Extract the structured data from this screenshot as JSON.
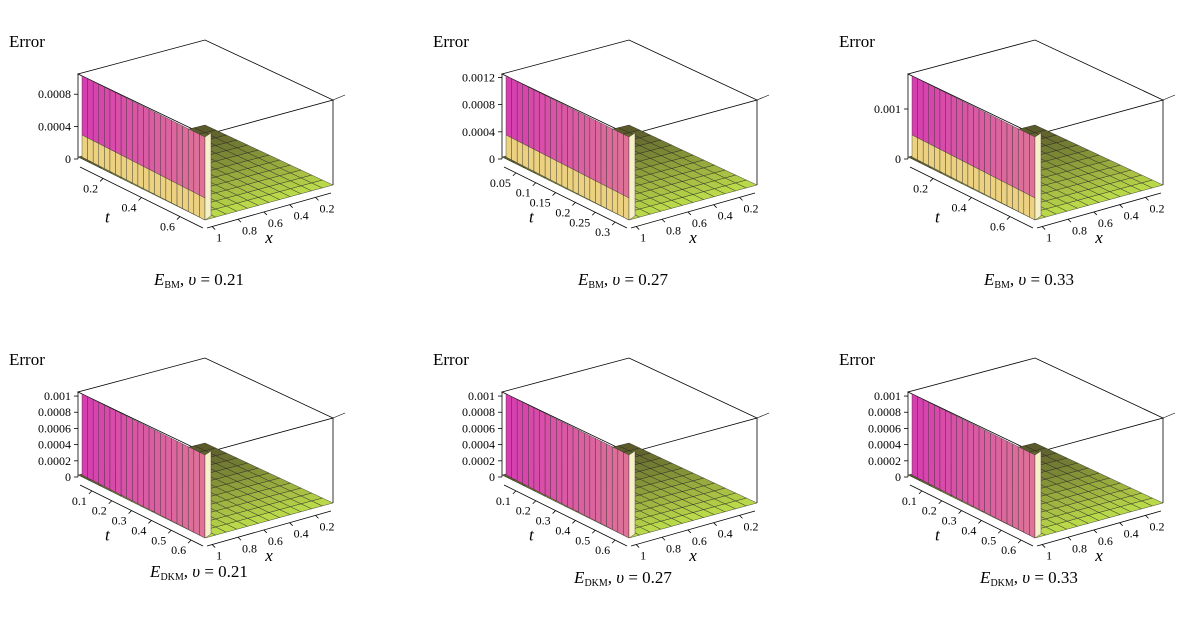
{
  "zlabel": "Error",
  "tlabel": "t",
  "xlabel": "x",
  "colors": {
    "low": "#eef35a",
    "mid": "#e8a0b8",
    "high": "#d73fb0",
    "floor": "#5a5a2a",
    "floorlight": "#b9d84a"
  },
  "chart_data": [
    {
      "type": "surface",
      "caption": {
        "e": "E",
        "sub": "BM",
        "rest": ", ",
        "nu": "υ",
        "val": " = 0.21"
      },
      "ztick_labels": [
        "0",
        "0.0004",
        "0.0008"
      ],
      "zticks": [
        0,
        0.0004,
        0.0008
      ],
      "zlim": [
        0,
        0.00105
      ],
      "tticks_labels": [
        "0.2",
        "0.4",
        "0.6"
      ],
      "xticks_labels": [
        "1",
        "0.8",
        "0.6",
        "0.4",
        "0.2"
      ],
      "peak": 0.00105,
      "step": 0.00025
    },
    {
      "type": "surface",
      "caption": {
        "e": "E",
        "sub": "BM",
        "rest": ", ",
        "nu": "υ",
        "val": " = 0.27"
      },
      "ztick_labels": [
        "0",
        "0.0004",
        "0.0008",
        "0.0012"
      ],
      "zticks": [
        0,
        0.0004,
        0.0008,
        0.0012
      ],
      "zlim": [
        0,
        0.00125
      ],
      "tticks_labels": [
        "0.05",
        "0.1",
        "0.15",
        "0.2",
        "0.25",
        "0.3"
      ],
      "xticks_labels": [
        "1",
        "0.8",
        "0.6",
        "0.4",
        "0.2"
      ],
      "peak": 0.00125,
      "step": 0.0003
    },
    {
      "type": "surface",
      "caption": {
        "e": "E",
        "sub": "BM",
        "rest": ", ",
        "nu": "υ",
        "val": " = 0.33"
      },
      "ztick_labels": [
        "0",
        "0.001"
      ],
      "zticks": [
        0,
        0.001
      ],
      "zlim": [
        0,
        0.0017
      ],
      "tticks_labels": [
        "0.2",
        "0.4",
        "0.6"
      ],
      "xticks_labels": [
        "1",
        "0.8",
        "0.6",
        "0.4",
        "0.2"
      ],
      "peak": 0.0017,
      "step": 0.0004
    },
    {
      "type": "surface",
      "caption": {
        "e": "E",
        "sub": "DKM",
        "rest": ", ",
        "nu": "υ",
        "val": " = 0.21"
      },
      "ztick_labels": [
        "0",
        "0.0002",
        "0.0004",
        "0.0006",
        "0.0008",
        "0.001"
      ],
      "zticks": [
        0,
        0.0002,
        0.0004,
        0.0006,
        0.0008,
        0.001
      ],
      "zlim": [
        0,
        0.00105
      ],
      "tticks_labels": [
        "0.1",
        "0.2",
        "0.3",
        "0.4",
        "0.5",
        "0.6"
      ],
      "xticks_labels": [
        "1",
        "0.8",
        "0.6",
        "0.4",
        "0.2"
      ],
      "peak": 0.00105,
      "step": 0
    },
    {
      "type": "surface",
      "caption": {
        "e": "E",
        "sub": "DKM",
        "rest": ", ",
        "nu": "υ",
        "val": " = 0.27"
      },
      "ztick_labels": [
        "0",
        "0.0002",
        "0.0004",
        "0.0006",
        "0.0008",
        "0.001"
      ],
      "zticks": [
        0,
        0.0002,
        0.0004,
        0.0006,
        0.0008,
        0.001
      ],
      "zlim": [
        0,
        0.00105
      ],
      "tticks_labels": [
        "0.1",
        "0.2",
        "0.3",
        "0.4",
        "0.5",
        "0.6"
      ],
      "xticks_labels": [
        "1",
        "0.8",
        "0.6",
        "0.4",
        "0.2"
      ],
      "peak": 0.00105,
      "step": 0
    },
    {
      "type": "surface",
      "caption": {
        "e": "E",
        "sub": "DKM",
        "rest": ", ",
        "nu": "υ",
        "val": " = 0.33"
      },
      "ztick_labels": [
        "0",
        "0.0002",
        "0.0004",
        "0.0006",
        "0.0008",
        "0.001"
      ],
      "zticks": [
        0,
        0.0002,
        0.0004,
        0.0006,
        0.0008,
        0.001
      ],
      "zlim": [
        0,
        0.00105
      ],
      "tticks_labels": [
        "0.1",
        "0.2",
        "0.3",
        "0.4",
        "0.5",
        "0.6"
      ],
      "xticks_labels": [
        "1",
        "0.8",
        "0.6",
        "0.4",
        "0.2"
      ],
      "peak": 0.00105,
      "step": 0
    }
  ]
}
